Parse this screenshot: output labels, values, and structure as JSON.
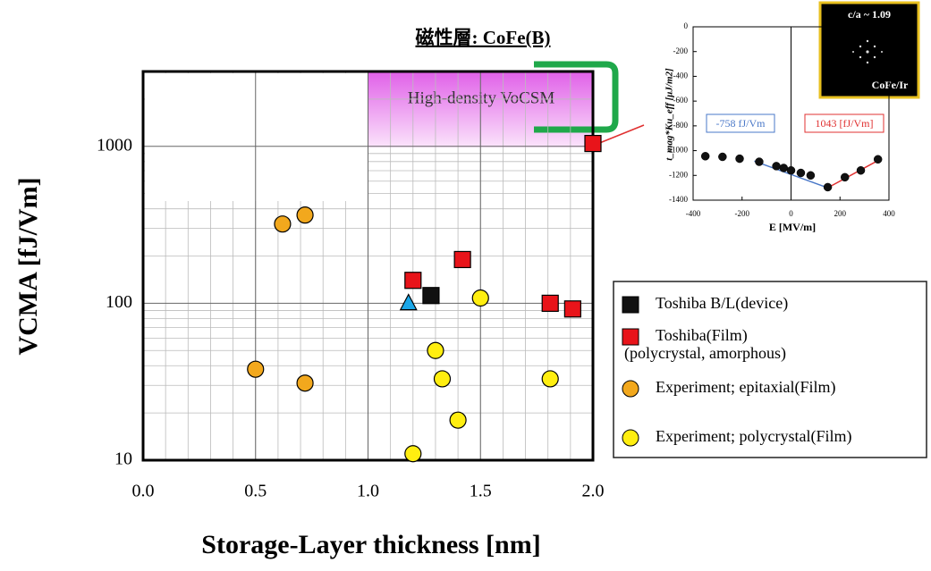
{
  "chart_data": [
    {
      "type": "scatter",
      "title": "磁性層: CoFe(B)",
      "xlabel": "Storage-Layer thickness [nm]",
      "ylabel": "VCMA [fJ/Vm]",
      "annotation": "High-density VoCSM",
      "xlim": [
        0,
        2
      ],
      "xticks": [
        {
          "value": 0,
          "label": "0.0"
        },
        {
          "value": 0.5,
          "label": "0.5"
        },
        {
          "value": 1,
          "label": "1.0"
        },
        {
          "value": 1.5,
          "label": "1.5"
        },
        {
          "value": 2,
          "label": "2.0"
        }
      ],
      "ylim": [
        10,
        3000
      ],
      "yticks": [
        10,
        100,
        1000
      ],
      "yscale": "log",
      "grid": true,
      "minor_grid": true,
      "series": [
        {
          "name": "Toshiba B/L(device)",
          "color": "#111111",
          "marker": "square",
          "x": [
            1.28
          ],
          "values": [
            112
          ]
        },
        {
          "name": "Toshiba(Film)",
          "name_note": "(polycrystal, amorphous)",
          "color": "#e8141a",
          "marker": "square",
          "x": [
            1.2,
            1.42,
            1.81,
            1.91,
            2.0
          ],
          "values": [
            140,
            190,
            100,
            92,
            1043
          ]
        },
        {
          "name": "Experiment; epitaxial(Film)",
          "color": "#f2a81d",
          "marker": "circle",
          "x": [
            0.5,
            0.62,
            0.72,
            0.72
          ],
          "values": [
            38,
            320,
            365,
            31
          ]
        },
        {
          "name": "Experiment; polycrystal(Film)",
          "color": "#ffee10",
          "marker": "circle",
          "x": [
            1.2,
            1.3,
            1.33,
            1.4,
            1.5,
            1.81
          ],
          "values": [
            11,
            50,
            33,
            18,
            108,
            33
          ]
        },
        {
          "color": "#1ba7e8",
          "marker": "triangle",
          "x": [
            1.18
          ],
          "values": [
            100
          ]
        }
      ]
    },
    {
      "type": "scatter",
      "xlabel": "E [MV/m]",
      "ylabel": "t_mag*Ku_eff [μJ/m2]",
      "image_label": "c/a ~ 1.09",
      "image_caption": "CoFe/Ir",
      "xlim": [
        -400,
        400
      ],
      "xticks": [
        -400,
        -200,
        0,
        200,
        400
      ],
      "ylim": [
        -1400,
        0
      ],
      "yticks": [
        -1400,
        -1200,
        -1000,
        -800,
        -600,
        -400,
        -200,
        0
      ],
      "series": [
        {
          "color": "#111111",
          "marker": "circle",
          "x": [
            -350,
            -280,
            -210,
            -130,
            -60,
            -30,
            0,
            40,
            80,
            150,
            220,
            285,
            355
          ],
          "values": [
            -1045,
            -1050,
            -1065,
            -1090,
            -1125,
            -1140,
            -1160,
            -1180,
            -1200,
            -1295,
            -1215,
            -1160,
            -1070
          ]
        }
      ],
      "fits": [
        {
          "label": "-758 fJ/Vm",
          "color": "#4a78c8",
          "x": [
            -150,
            150
          ],
          "values": [
            -1085,
            -1300
          ]
        },
        {
          "label": "1043 [fJ/Vm]",
          "color": "#e03030",
          "x": [
            150,
            360
          ],
          "values": [
            -1300,
            -1075
          ]
        }
      ]
    }
  ]
}
